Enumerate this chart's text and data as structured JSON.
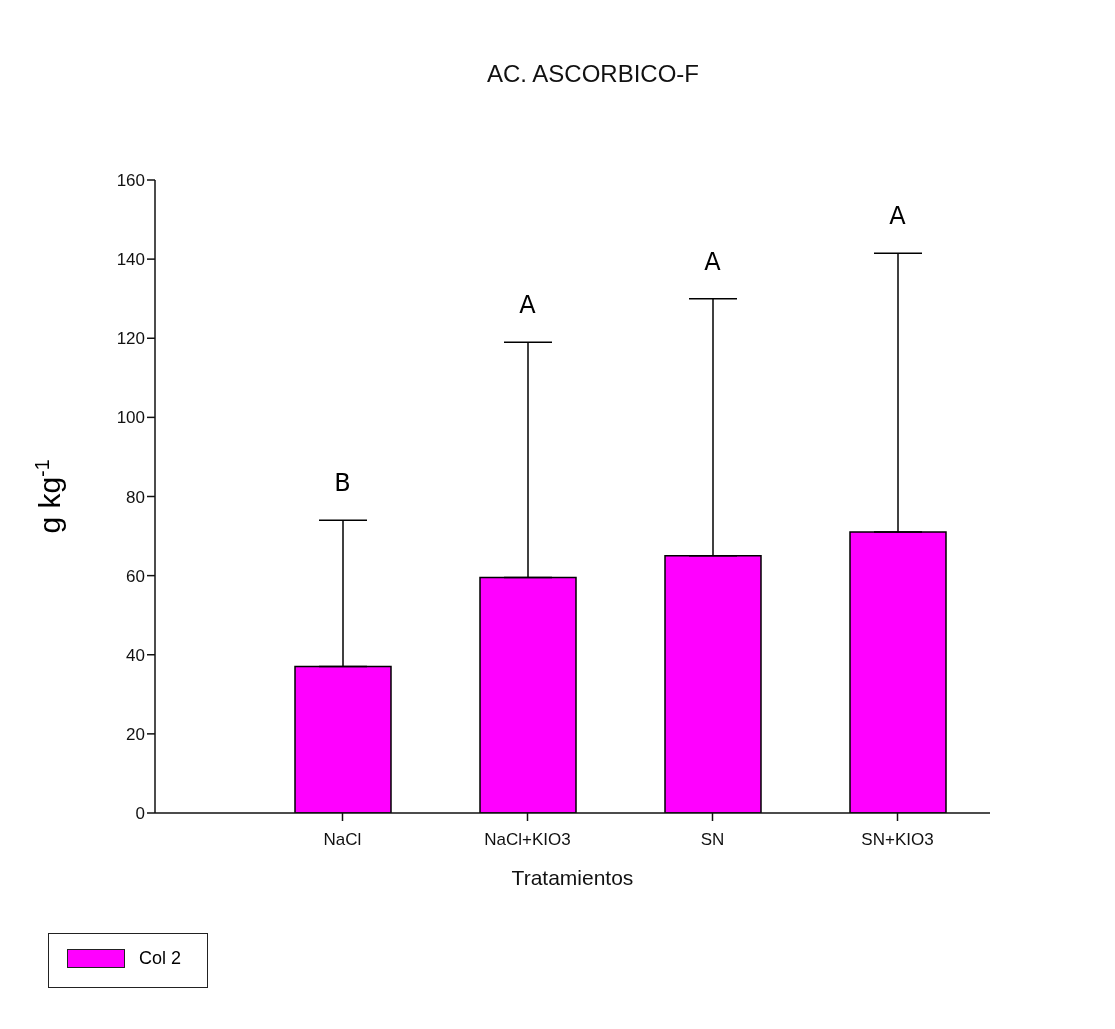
{
  "chart_data": {
    "type": "bar",
    "title": "AC. ASCORBICO-F",
    "xlabel": "Tratamientos",
    "ylabel": "g kg$^{-1}$",
    "categories": [
      "NaCl",
      "NaCl+KIO3",
      "SN",
      "SN+KIO3"
    ],
    "series": [
      {
        "name": "Col 2",
        "color": "#ff00ff",
        "values": [
          37,
          59.5,
          65,
          71
        ],
        "errors": [
          [
            37,
            74
          ],
          [
            59.5,
            119
          ],
          [
            65,
            130
          ],
          [
            71,
            141.5
          ]
        ]
      }
    ],
    "ylim": [
      0,
      160
    ],
    "yticks": [
      0,
      20,
      40,
      60,
      80,
      100,
      120,
      140,
      160
    ],
    "grid": false,
    "legend": "bottom left",
    "annotations": [
      "B",
      "A",
      "A",
      "A"
    ]
  }
}
